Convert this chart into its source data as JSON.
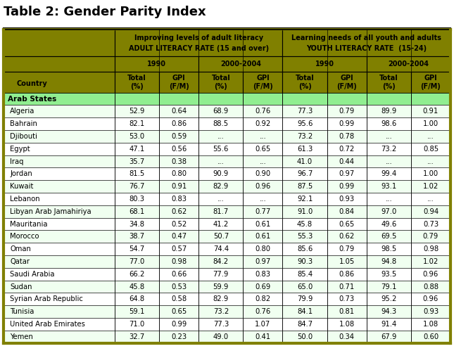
{
  "title": "Table 2: Gender Parity Index",
  "header_group1_line1": "Improving levels of adult literacy",
  "header_group1_line2": "ADULT LITERACY RATE (15 and over)",
  "header_group2_line1": "Learning needs of all youth and adults",
  "header_group2_line2": "YOUTH LITERACY RATE  (15-24)",
  "section_label": "Arab States",
  "countries": [
    "Algeria",
    "Bahrain",
    "Djibouti",
    "Egypt",
    "Iraq",
    "Jordan",
    "Kuwait",
    "Lebanon",
    "Libyan Arab Jamahiriya",
    "Mauritania",
    "Morocco",
    "Oman",
    "Qatar",
    "Saudi Arabia",
    "Sudan",
    "Syrian Arab Republic",
    "Tunisia",
    "United Arab Emirates",
    "Yemen"
  ],
  "data": [
    [
      "52.9",
      "0.64",
      "68.9",
      "0.76",
      "77.3",
      "0.79",
      "89.9",
      "0.91"
    ],
    [
      "82.1",
      "0.86",
      "88.5",
      "0.92",
      "95.6",
      "0.99",
      "98.6",
      "1.00"
    ],
    [
      "53.0",
      "0.59",
      "...",
      "...",
      "73.2",
      "0.78",
      "...",
      "..."
    ],
    [
      "47.1",
      "0.56",
      "55.6",
      "0.65",
      "61.3",
      "0.72",
      "73.2",
      "0.85"
    ],
    [
      "35.7",
      "0.38",
      "...",
      "...",
      "41.0",
      "0.44",
      "...",
      "..."
    ],
    [
      "81.5",
      "0.80",
      "90.9",
      "0.90",
      "96.7",
      "0.97",
      "99.4",
      "1.00"
    ],
    [
      "76.7",
      "0.91",
      "82.9",
      "0.96",
      "87.5",
      "0.99",
      "93.1",
      "1.02"
    ],
    [
      "80.3",
      "0.83",
      "...",
      "...",
      "92.1",
      "0.93",
      "...",
      "..."
    ],
    [
      "68.1",
      "0.62",
      "81.7",
      "0.77",
      "91.0",
      "0.84",
      "97.0",
      "0.94"
    ],
    [
      "34.8",
      "0.52",
      "41.2",
      "0.61",
      "45.8",
      "0.65",
      "49.6",
      "0.73"
    ],
    [
      "38.7",
      "0.47",
      "50.7",
      "0.61",
      "55.3",
      "0.62",
      "69.5",
      "0.79"
    ],
    [
      "54.7",
      "0.57",
      "74.4",
      "0.80",
      "85.6",
      "0.79",
      "98.5",
      "0.98"
    ],
    [
      "77.0",
      "0.98",
      "84.2",
      "0.97",
      "90.3",
      "1.05",
      "94.8",
      "1.02"
    ],
    [
      "66.2",
      "0.66",
      "77.9",
      "0.83",
      "85.4",
      "0.86",
      "93.5",
      "0.96"
    ],
    [
      "45.8",
      "0.53",
      "59.9",
      "0.69",
      "65.0",
      "0.71",
      "79.1",
      "0.88"
    ],
    [
      "64.8",
      "0.58",
      "82.9",
      "0.82",
      "79.9",
      "0.73",
      "95.2",
      "0.96"
    ],
    [
      "59.1",
      "0.65",
      "73.2",
      "0.76",
      "84.1",
      "0.81",
      "94.3",
      "0.93"
    ],
    [
      "71.0",
      "0.99",
      "77.3",
      "1.07",
      "84.7",
      "1.08",
      "91.4",
      "1.08"
    ],
    [
      "32.7",
      "0.23",
      "49.0",
      "0.41",
      "50.0",
      "0.34",
      "67.9",
      "0.60"
    ]
  ],
  "col_olive": "#808000",
  "col_section_green": "#90EE90",
  "col_row_even": "#F0FFF0",
  "col_row_odd": "#FFFFFF",
  "col_border": "#000000",
  "title_fontsize": 13,
  "header_fontsize": 7.0,
  "data_fontsize": 7.2,
  "fig_width": 6.45,
  "fig_height": 5.09,
  "dpi": 100
}
